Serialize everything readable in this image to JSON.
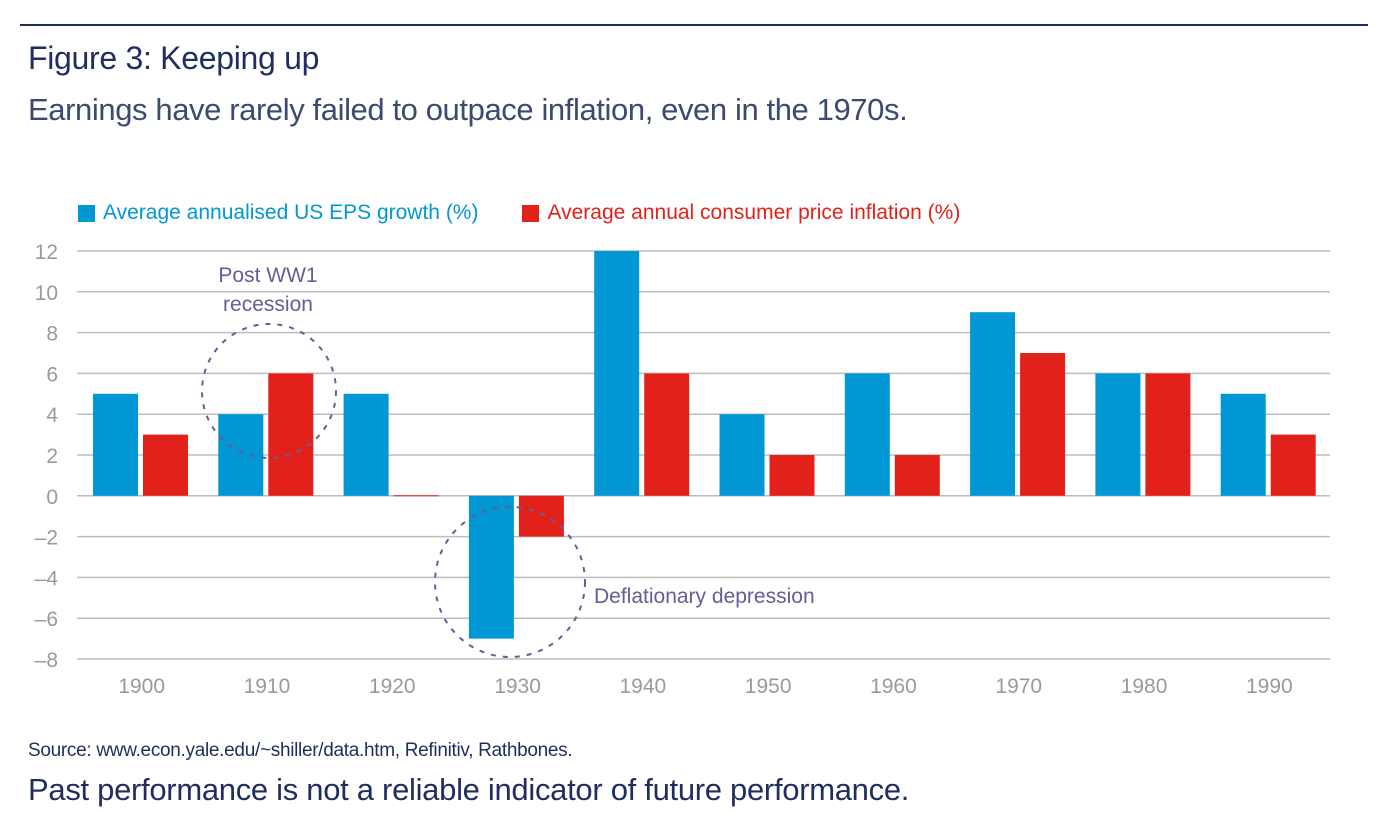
{
  "header": {
    "title": "Figure 3: Keeping up",
    "subtitle": "Earnings have rarely failed to outpace inflation, even in the 1970s."
  },
  "footer": {
    "source": "Source: www.econ.yale.edu/~shiller/data.htm, Refinitiv, Rathbones.",
    "disclaimer": "Past performance is not a reliable indicator of future performance."
  },
  "colors": {
    "eps": "#0097d4",
    "inflation": "#e3211b",
    "annotation": "#6b5b95",
    "grid": "#bdbdbd",
    "title": "#1f2e5e"
  },
  "chart_data": {
    "type": "bar",
    "title": "Figure 3: Keeping up",
    "subtitle": "Earnings have rarely failed to outpace inflation, even in the 1970s.",
    "xlabel": "",
    "ylabel": "",
    "categories": [
      "1900",
      "1910",
      "1920",
      "1930",
      "1940",
      "1950",
      "1960",
      "1970",
      "1980",
      "1990"
    ],
    "series": [
      {
        "name": "Average annualised US EPS growth (%)",
        "color": "#0097d4",
        "values": [
          5,
          4,
          5,
          -7,
          12,
          4,
          6,
          9,
          6,
          5
        ]
      },
      {
        "name": "Average annual consumer price inflation (%)",
        "color": "#e3211b",
        "values": [
          3,
          6,
          0,
          -2,
          6,
          2,
          2,
          7,
          6,
          3
        ]
      }
    ],
    "ylim": [
      -8,
      12
    ],
    "yticks": [
      12,
      10,
      8,
      6,
      4,
      2,
      0,
      -2,
      -4,
      -6,
      -8
    ],
    "ytick_labels": [
      "12",
      "10",
      "8",
      "6",
      "4",
      "2",
      "0",
      "–2",
      "–4",
      "–6",
      "–8"
    ],
    "grid": true,
    "legend_position": "top-left",
    "annotations": [
      {
        "text_lines": [
          "Post WW1",
          "recession"
        ],
        "category": "1910",
        "style": "dashed-circle"
      },
      {
        "text_lines": [
          "Deflationary depression"
        ],
        "category": "1930",
        "style": "dashed-circle"
      }
    ]
  }
}
